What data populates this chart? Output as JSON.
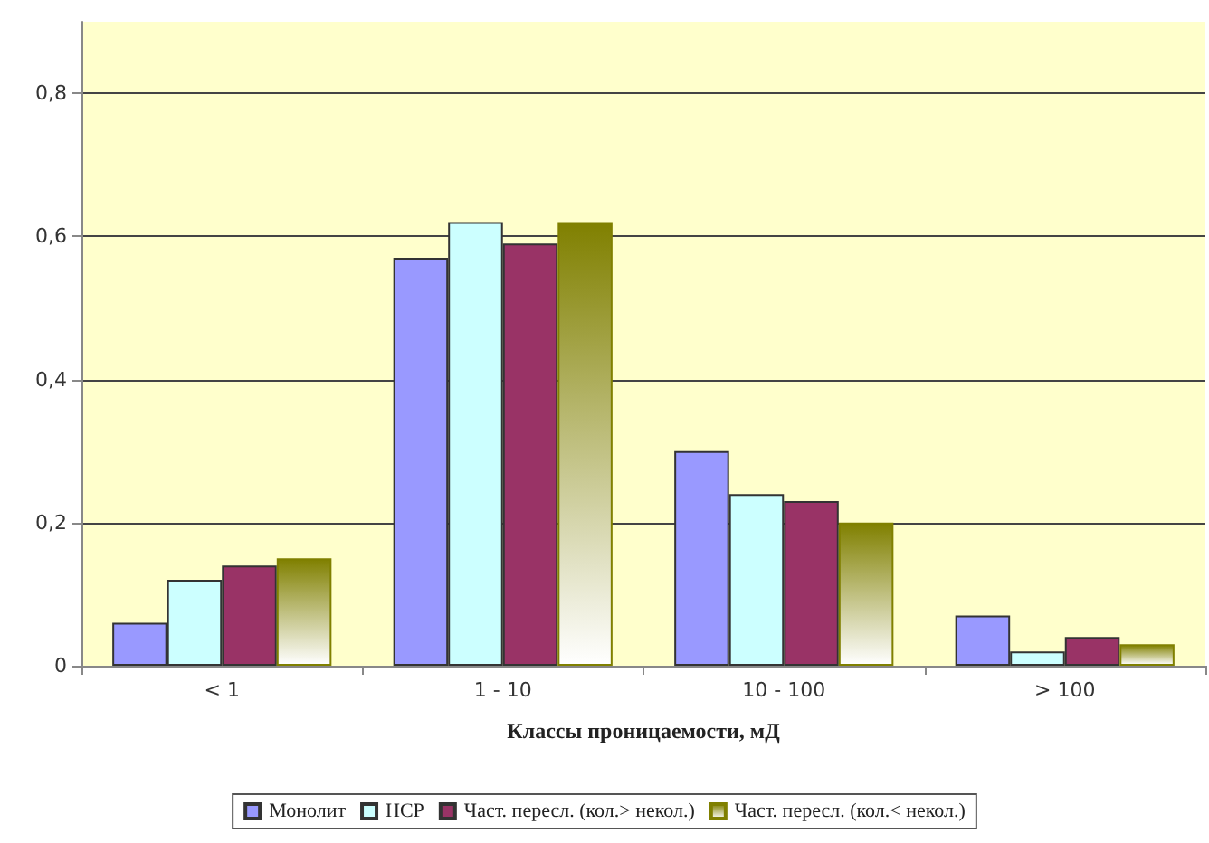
{
  "chart_data": {
    "type": "bar",
    "xlabel": "Классы проницаемости, мД",
    "categories": [
      "< 1",
      "1 - 10",
      "10 - 100",
      "> 100"
    ],
    "series": [
      {
        "name": "Монолит",
        "color": "#9999ff",
        "values": [
          0.06,
          0.57,
          0.3,
          0.07
        ]
      },
      {
        "name": "НСР",
        "color": "#ccffff",
        "values": [
          0.12,
          0.62,
          0.24,
          0.02
        ]
      },
      {
        "name": "Част. пересл. (кол.> некол.)",
        "color": "#993366",
        "values": [
          0.14,
          0.59,
          0.23,
          0.04
        ]
      },
      {
        "name": "Част. пересл. (кол.< некол.)",
        "color": "#808000",
        "values": [
          0.15,
          0.62,
          0.2,
          0.03
        ]
      }
    ],
    "ylim": [
      0,
      0.9
    ],
    "yticks": [
      0,
      {
        "value": 0.2,
        "label": "0,2"
      },
      {
        "value": 0.4,
        "label": "0,4"
      },
      {
        "value": 0.6,
        "label": "0,6"
      },
      {
        "value": 0.8,
        "label": "0,8"
      }
    ],
    "grid": "y",
    "legend": "bottom"
  }
}
